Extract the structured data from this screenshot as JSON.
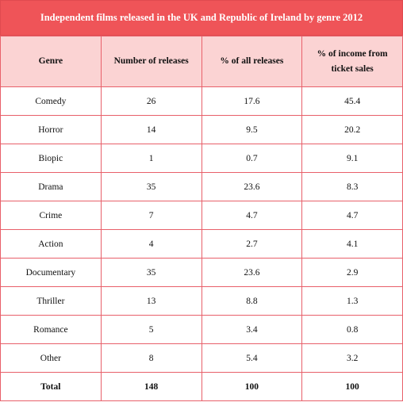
{
  "title": "Independent films released in the UK and Republic of Ireland by genre 2012",
  "table": {
    "headers": [
      "Genre",
      "Number of releases",
      "% of all releases",
      "% of income from ticket sales"
    ],
    "rows": [
      [
        "Comedy",
        26,
        17.6,
        45.4
      ],
      [
        "Horror",
        14,
        9.5,
        20.2
      ],
      [
        "Biopic",
        1,
        0.7,
        9.1
      ],
      [
        "Drama",
        35,
        23.6,
        8.3
      ],
      [
        "Crime",
        7,
        4.7,
        4.7
      ],
      [
        "Action",
        4,
        2.7,
        4.1
      ],
      [
        "Documentary",
        35,
        23.6,
        2.9
      ],
      [
        "Thriller",
        13,
        8.8,
        1.3
      ],
      [
        "Romance",
        5,
        3.4,
        0.8
      ],
      [
        "Other",
        8,
        5.4,
        3.2
      ]
    ],
    "total": [
      "Total",
      148,
      100,
      100
    ]
  }
}
